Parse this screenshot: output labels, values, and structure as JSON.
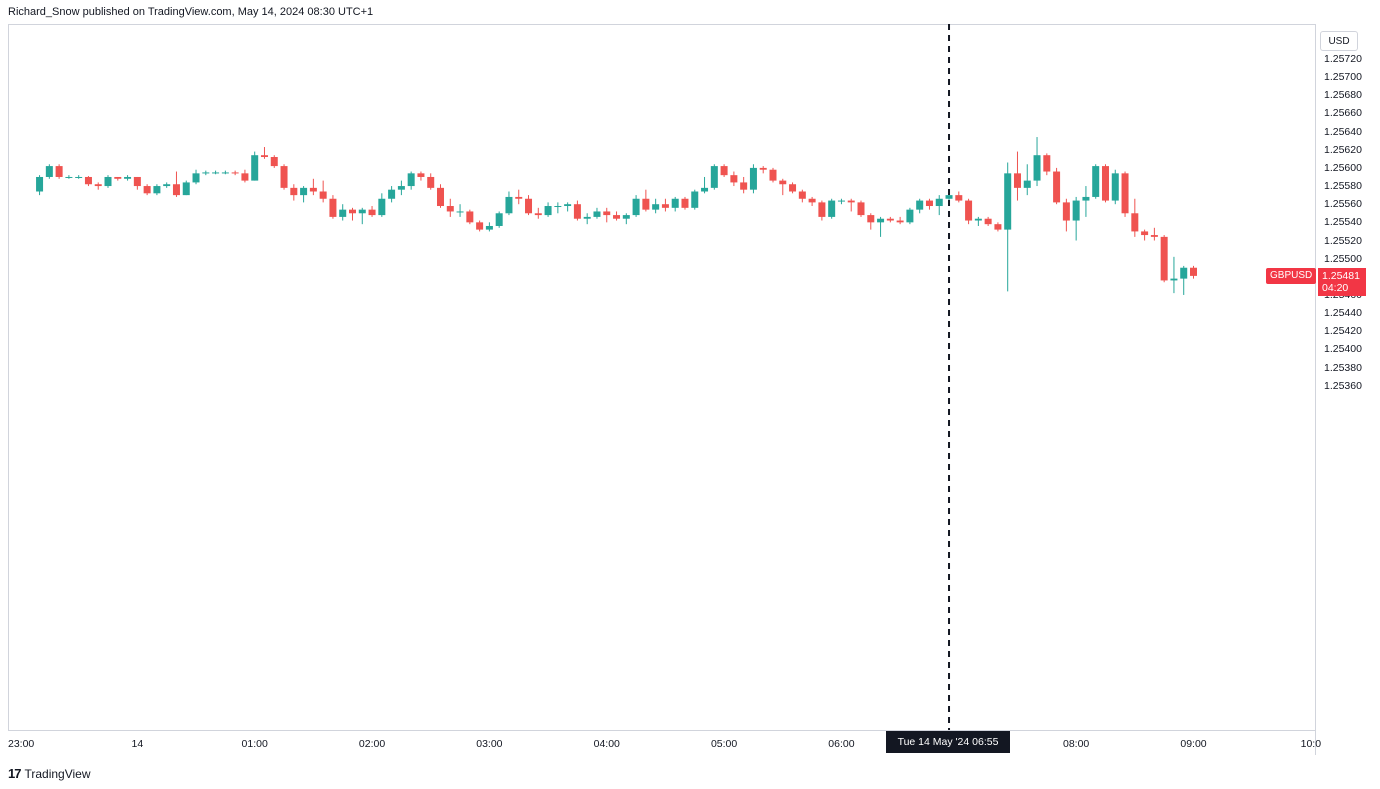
{
  "header": {
    "publisher": "Richard_Snow published on TradingView.com, May 14, 2024 08:30 UTC+1"
  },
  "price_axis": {
    "currency": "USD",
    "ticks": [
      "1.25720",
      "1.25700",
      "1.25680",
      "1.25660",
      "1.25640",
      "1.25620",
      "1.25600",
      "1.25580",
      "1.25560",
      "1.25540",
      "1.25520",
      "1.25500",
      "1.25480",
      "1.25460",
      "1.25440",
      "1.25420",
      "1.25400",
      "1.25380",
      "1.25360"
    ]
  },
  "time_axis": {
    "ticks": [
      "23:00",
      "14",
      "01:00",
      "02:00",
      "03:00",
      "04:00",
      "05:00",
      "06:00",
      "07:00",
      "08:00",
      "09:00",
      "10:0"
    ]
  },
  "crosshair": {
    "label": "Tue 14 May '24   06:55"
  },
  "last_price": {
    "symbol": "GBPUSD",
    "price": "1.25481",
    "countdown": "04:20"
  },
  "footer": {
    "logo_mark": "17",
    "logo_text": "TradingView"
  },
  "colors": {
    "up": "#26a69a",
    "down": "#ef5350",
    "crosshair": "#131722",
    "price_tag": "#f23645"
  },
  "chart_data": {
    "type": "candlestick",
    "title": "",
    "symbol": "GBPUSD",
    "interval_minutes": 5,
    "ylim": [
      1.2535,
      1.2573
    ],
    "x_start": "23:10",
    "highlight_time": "06:55",
    "candles": [
      {
        "t": "23:10",
        "o": 1.25574,
        "h": 1.25592,
        "l": 1.2557,
        "c": 1.2559
      },
      {
        "t": "23:15",
        "o": 1.2559,
        "h": 1.25604,
        "l": 1.25588,
        "c": 1.25602
      },
      {
        "t": "23:20",
        "o": 1.25602,
        "h": 1.25604,
        "l": 1.25588,
        "c": 1.2559
      },
      {
        "t": "23:25",
        "o": 1.2559,
        "h": 1.25592,
        "l": 1.25588,
        "c": 1.2559
      },
      {
        "t": "23:30",
        "o": 1.2559,
        "h": 1.25592,
        "l": 1.25588,
        "c": 1.2559
      },
      {
        "t": "23:35",
        "o": 1.2559,
        "h": 1.25591,
        "l": 1.2558,
        "c": 1.25582
      },
      {
        "t": "23:40",
        "o": 1.25582,
        "h": 1.25584,
        "l": 1.25576,
        "c": 1.2558
      },
      {
        "t": "23:45",
        "o": 1.2558,
        "h": 1.25592,
        "l": 1.25578,
        "c": 1.2559
      },
      {
        "t": "23:50",
        "o": 1.2559,
        "h": 1.2559,
        "l": 1.25586,
        "c": 1.25588
      },
      {
        "t": "23:55",
        "o": 1.25588,
        "h": 1.25592,
        "l": 1.25586,
        "c": 1.2559
      },
      {
        "t": "00:00",
        "o": 1.2559,
        "h": 1.2559,
        "l": 1.25576,
        "c": 1.2558
      },
      {
        "t": "00:05",
        "o": 1.2558,
        "h": 1.25582,
        "l": 1.2557,
        "c": 1.25572
      },
      {
        "t": "00:10",
        "o": 1.25572,
        "h": 1.25582,
        "l": 1.2557,
        "c": 1.2558
      },
      {
        "t": "00:15",
        "o": 1.2558,
        "h": 1.25584,
        "l": 1.25578,
        "c": 1.25582
      },
      {
        "t": "00:20",
        "o": 1.25582,
        "h": 1.25596,
        "l": 1.25568,
        "c": 1.2557
      },
      {
        "t": "00:25",
        "o": 1.2557,
        "h": 1.25586,
        "l": 1.2557,
        "c": 1.25584
      },
      {
        "t": "00:30",
        "o": 1.25584,
        "h": 1.25598,
        "l": 1.25582,
        "c": 1.25594
      },
      {
        "t": "00:35",
        "o": 1.25594,
        "h": 1.25597,
        "l": 1.25592,
        "c": 1.25595
      },
      {
        "t": "00:40",
        "o": 1.25595,
        "h": 1.25597,
        "l": 1.25593,
        "c": 1.25595
      },
      {
        "t": "00:45",
        "o": 1.25595,
        "h": 1.25597,
        "l": 1.25593,
        "c": 1.25595
      },
      {
        "t": "00:50",
        "o": 1.25595,
        "h": 1.25597,
        "l": 1.25592,
        "c": 1.25594
      },
      {
        "t": "00:55",
        "o": 1.25594,
        "h": 1.25598,
        "l": 1.25584,
        "c": 1.25586
      },
      {
        "t": "01:00",
        "o": 1.25586,
        "h": 1.25618,
        "l": 1.25586,
        "c": 1.25614
      },
      {
        "t": "01:05",
        "o": 1.25614,
        "h": 1.25623,
        "l": 1.2561,
        "c": 1.25612
      },
      {
        "t": "01:10",
        "o": 1.25612,
        "h": 1.25614,
        "l": 1.256,
        "c": 1.25602
      },
      {
        "t": "01:15",
        "o": 1.25602,
        "h": 1.25604,
        "l": 1.25576,
        "c": 1.25578
      },
      {
        "t": "01:20",
        "o": 1.25578,
        "h": 1.25582,
        "l": 1.25564,
        "c": 1.2557
      },
      {
        "t": "01:25",
        "o": 1.2557,
        "h": 1.2558,
        "l": 1.25562,
        "c": 1.25578
      },
      {
        "t": "01:30",
        "o": 1.25578,
        "h": 1.25588,
        "l": 1.2557,
        "c": 1.25574
      },
      {
        "t": "01:35",
        "o": 1.25574,
        "h": 1.25586,
        "l": 1.25562,
        "c": 1.25566
      },
      {
        "t": "01:40",
        "o": 1.25566,
        "h": 1.2557,
        "l": 1.25544,
        "c": 1.25546
      },
      {
        "t": "01:45",
        "o": 1.25546,
        "h": 1.2556,
        "l": 1.25542,
        "c": 1.25554
      },
      {
        "t": "01:50",
        "o": 1.25554,
        "h": 1.25556,
        "l": 1.25542,
        "c": 1.2555
      },
      {
        "t": "01:55",
        "o": 1.2555,
        "h": 1.25556,
        "l": 1.25538,
        "c": 1.25554
      },
      {
        "t": "02:00",
        "o": 1.25554,
        "h": 1.25558,
        "l": 1.25546,
        "c": 1.25548
      },
      {
        "t": "02:05",
        "o": 1.25548,
        "h": 1.25572,
        "l": 1.25546,
        "c": 1.25566
      },
      {
        "t": "02:10",
        "o": 1.25566,
        "h": 1.2558,
        "l": 1.25562,
        "c": 1.25576
      },
      {
        "t": "02:15",
        "o": 1.25576,
        "h": 1.25586,
        "l": 1.2557,
        "c": 1.2558
      },
      {
        "t": "02:20",
        "o": 1.2558,
        "h": 1.25596,
        "l": 1.25576,
        "c": 1.25594
      },
      {
        "t": "02:25",
        "o": 1.25594,
        "h": 1.25596,
        "l": 1.25586,
        "c": 1.2559
      },
      {
        "t": "02:30",
        "o": 1.2559,
        "h": 1.25594,
        "l": 1.25576,
        "c": 1.25578
      },
      {
        "t": "02:35",
        "o": 1.25578,
        "h": 1.25582,
        "l": 1.25556,
        "c": 1.25558
      },
      {
        "t": "02:40",
        "o": 1.25558,
        "h": 1.25566,
        "l": 1.25546,
        "c": 1.25552
      },
      {
        "t": "02:45",
        "o": 1.25552,
        "h": 1.2556,
        "l": 1.25546,
        "c": 1.25552
      },
      {
        "t": "02:50",
        "o": 1.25552,
        "h": 1.25554,
        "l": 1.25538,
        "c": 1.2554
      },
      {
        "t": "02:55",
        "o": 1.2554,
        "h": 1.25542,
        "l": 1.2553,
        "c": 1.25532
      },
      {
        "t": "03:00",
        "o": 1.25532,
        "h": 1.2554,
        "l": 1.2553,
        "c": 1.25536
      },
      {
        "t": "03:05",
        "o": 1.25536,
        "h": 1.25552,
        "l": 1.25534,
        "c": 1.2555
      },
      {
        "t": "03:10",
        "o": 1.2555,
        "h": 1.25574,
        "l": 1.25548,
        "c": 1.25568
      },
      {
        "t": "03:15",
        "o": 1.25568,
        "h": 1.25576,
        "l": 1.2556,
        "c": 1.25566
      },
      {
        "t": "03:20",
        "o": 1.25566,
        "h": 1.2557,
        "l": 1.25548,
        "c": 1.2555
      },
      {
        "t": "03:25",
        "o": 1.2555,
        "h": 1.25556,
        "l": 1.25544,
        "c": 1.25548
      },
      {
        "t": "03:30",
        "o": 1.25548,
        "h": 1.25562,
        "l": 1.25546,
        "c": 1.25558
      },
      {
        "t": "03:35",
        "o": 1.25558,
        "h": 1.25562,
        "l": 1.2555,
        "c": 1.25558
      },
      {
        "t": "03:40",
        "o": 1.25558,
        "h": 1.25562,
        "l": 1.25552,
        "c": 1.2556
      },
      {
        "t": "03:45",
        "o": 1.2556,
        "h": 1.25564,
        "l": 1.25542,
        "c": 1.25544
      },
      {
        "t": "03:50",
        "o": 1.25544,
        "h": 1.2555,
        "l": 1.25538,
        "c": 1.25546
      },
      {
        "t": "03:55",
        "o": 1.25546,
        "h": 1.25556,
        "l": 1.25544,
        "c": 1.25552
      },
      {
        "t": "04:00",
        "o": 1.25552,
        "h": 1.25556,
        "l": 1.2554,
        "c": 1.25548
      },
      {
        "t": "04:05",
        "o": 1.25548,
        "h": 1.25552,
        "l": 1.25542,
        "c": 1.25544
      },
      {
        "t": "04:10",
        "o": 1.25544,
        "h": 1.2555,
        "l": 1.25538,
        "c": 1.25548
      },
      {
        "t": "04:15",
        "o": 1.25548,
        "h": 1.2557,
        "l": 1.25546,
        "c": 1.25566
      },
      {
        "t": "04:20",
        "o": 1.25566,
        "h": 1.25576,
        "l": 1.25552,
        "c": 1.25554
      },
      {
        "t": "04:25",
        "o": 1.25554,
        "h": 1.25566,
        "l": 1.2555,
        "c": 1.2556
      },
      {
        "t": "04:30",
        "o": 1.2556,
        "h": 1.25566,
        "l": 1.25552,
        "c": 1.25556
      },
      {
        "t": "04:35",
        "o": 1.25556,
        "h": 1.25568,
        "l": 1.25552,
        "c": 1.25566
      },
      {
        "t": "04:40",
        "o": 1.25566,
        "h": 1.25568,
        "l": 1.25554,
        "c": 1.25556
      },
      {
        "t": "04:45",
        "o": 1.25556,
        "h": 1.25576,
        "l": 1.25554,
        "c": 1.25574
      },
      {
        "t": "04:50",
        "o": 1.25574,
        "h": 1.2559,
        "l": 1.25572,
        "c": 1.25578
      },
      {
        "t": "04:55",
        "o": 1.25578,
        "h": 1.25604,
        "l": 1.25576,
        "c": 1.25602
      },
      {
        "t": "05:00",
        "o": 1.25602,
        "h": 1.25604,
        "l": 1.2559,
        "c": 1.25592
      },
      {
        "t": "05:05",
        "o": 1.25592,
        "h": 1.25596,
        "l": 1.2558,
        "c": 1.25584
      },
      {
        "t": "05:10",
        "o": 1.25584,
        "h": 1.2559,
        "l": 1.25572,
        "c": 1.25576
      },
      {
        "t": "05:15",
        "o": 1.25576,
        "h": 1.25604,
        "l": 1.25572,
        "c": 1.256
      },
      {
        "t": "05:20",
        "o": 1.256,
        "h": 1.25602,
        "l": 1.25594,
        "c": 1.25598
      },
      {
        "t": "05:25",
        "o": 1.25598,
        "h": 1.256,
        "l": 1.25584,
        "c": 1.25586
      },
      {
        "t": "05:30",
        "o": 1.25586,
        "h": 1.25588,
        "l": 1.2557,
        "c": 1.25582
      },
      {
        "t": "05:35",
        "o": 1.25582,
        "h": 1.25584,
        "l": 1.25572,
        "c": 1.25574
      },
      {
        "t": "05:40",
        "o": 1.25574,
        "h": 1.25576,
        "l": 1.25562,
        "c": 1.25566
      },
      {
        "t": "05:45",
        "o": 1.25566,
        "h": 1.25568,
        "l": 1.25558,
        "c": 1.25562
      },
      {
        "t": "05:50",
        "o": 1.25562,
        "h": 1.25564,
        "l": 1.25542,
        "c": 1.25546
      },
      {
        "t": "05:55",
        "o": 1.25546,
        "h": 1.25566,
        "l": 1.25544,
        "c": 1.25564
      },
      {
        "t": "06:00",
        "o": 1.25564,
        "h": 1.25566,
        "l": 1.2556,
        "c": 1.25564
      },
      {
        "t": "06:05",
        "o": 1.25564,
        "h": 1.25566,
        "l": 1.25552,
        "c": 1.25562
      },
      {
        "t": "06:10",
        "o": 1.25562,
        "h": 1.25564,
        "l": 1.25546,
        "c": 1.25548
      },
      {
        "t": "06:15",
        "o": 1.25548,
        "h": 1.2555,
        "l": 1.25532,
        "c": 1.2554
      },
      {
        "t": "06:20",
        "o": 1.2554,
        "h": 1.25546,
        "l": 1.25524,
        "c": 1.25544
      },
      {
        "t": "06:25",
        "o": 1.25544,
        "h": 1.25546,
        "l": 1.2554,
        "c": 1.25542
      },
      {
        "t": "06:30",
        "o": 1.25542,
        "h": 1.25546,
        "l": 1.25538,
        "c": 1.2554
      },
      {
        "t": "06:35",
        "o": 1.2554,
        "h": 1.25556,
        "l": 1.25538,
        "c": 1.25554
      },
      {
        "t": "06:40",
        "o": 1.25554,
        "h": 1.25566,
        "l": 1.2555,
        "c": 1.25564
      },
      {
        "t": "06:45",
        "o": 1.25564,
        "h": 1.25566,
        "l": 1.25554,
        "c": 1.25558
      },
      {
        "t": "06:50",
        "o": 1.25558,
        "h": 1.2557,
        "l": 1.25548,
        "c": 1.25566
      },
      {
        "t": "06:55",
        "o": 1.25566,
        "h": 1.25572,
        "l": 1.25564,
        "c": 1.2557
      },
      {
        "t": "07:00",
        "o": 1.2557,
        "h": 1.25574,
        "l": 1.25562,
        "c": 1.25564
      },
      {
        "t": "07:05",
        "o": 1.25564,
        "h": 1.25566,
        "l": 1.25538,
        "c": 1.25542
      },
      {
        "t": "07:10",
        "o": 1.25542,
        "h": 1.25546,
        "l": 1.25536,
        "c": 1.25544
      },
      {
        "t": "07:15",
        "o": 1.25544,
        "h": 1.25546,
        "l": 1.25536,
        "c": 1.25538
      },
      {
        "t": "07:20",
        "o": 1.25538,
        "h": 1.2554,
        "l": 1.2553,
        "c": 1.25532
      },
      {
        "t": "07:25",
        "o": 1.25532,
        "h": 1.25606,
        "l": 1.25464,
        "c": 1.25594
      },
      {
        "t": "07:30",
        "o": 1.25594,
        "h": 1.25618,
        "l": 1.25564,
        "c": 1.25578
      },
      {
        "t": "07:35",
        "o": 1.25578,
        "h": 1.25604,
        "l": 1.2557,
        "c": 1.25586
      },
      {
        "t": "07:40",
        "o": 1.25586,
        "h": 1.25634,
        "l": 1.2558,
        "c": 1.25614
      },
      {
        "t": "07:45",
        "o": 1.25614,
        "h": 1.25616,
        "l": 1.25592,
        "c": 1.25596
      },
      {
        "t": "07:50",
        "o": 1.25596,
        "h": 1.256,
        "l": 1.2556,
        "c": 1.25562
      },
      {
        "t": "07:55",
        "o": 1.25562,
        "h": 1.25566,
        "l": 1.2553,
        "c": 1.25542
      },
      {
        "t": "08:00",
        "o": 1.25542,
        "h": 1.25568,
        "l": 1.2552,
        "c": 1.25564
      },
      {
        "t": "08:05",
        "o": 1.25564,
        "h": 1.2558,
        "l": 1.25546,
        "c": 1.25568
      },
      {
        "t": "08:10",
        "o": 1.25568,
        "h": 1.25604,
        "l": 1.25566,
        "c": 1.25602
      },
      {
        "t": "08:15",
        "o": 1.25602,
        "h": 1.25604,
        "l": 1.25562,
        "c": 1.25564
      },
      {
        "t": "08:20",
        "o": 1.25564,
        "h": 1.25598,
        "l": 1.2556,
        "c": 1.25594
      },
      {
        "t": "08:25",
        "o": 1.25594,
        "h": 1.25596,
        "l": 1.25546,
        "c": 1.2555
      },
      {
        "t": "08:30",
        "o": 1.2555,
        "h": 1.25566,
        "l": 1.25524,
        "c": 1.2553
      },
      {
        "t": "08:35",
        "o": 1.2553,
        "h": 1.25532,
        "l": 1.2552,
        "c": 1.25526
      },
      {
        "t": "08:40",
        "o": 1.25526,
        "h": 1.25534,
        "l": 1.2552,
        "c": 1.25524
      },
      {
        "t": "08:45",
        "o": 1.25524,
        "h": 1.25526,
        "l": 1.25474,
        "c": 1.25476
      },
      {
        "t": "08:50",
        "o": 1.25476,
        "h": 1.25502,
        "l": 1.25462,
        "c": 1.25478
      },
      {
        "t": "08:55",
        "o": 1.25478,
        "h": 1.25492,
        "l": 1.2546,
        "c": 1.2549
      },
      {
        "t": "09:00",
        "o": 1.2549,
        "h": 1.25492,
        "l": 1.25478,
        "c": 1.25481
      }
    ]
  }
}
